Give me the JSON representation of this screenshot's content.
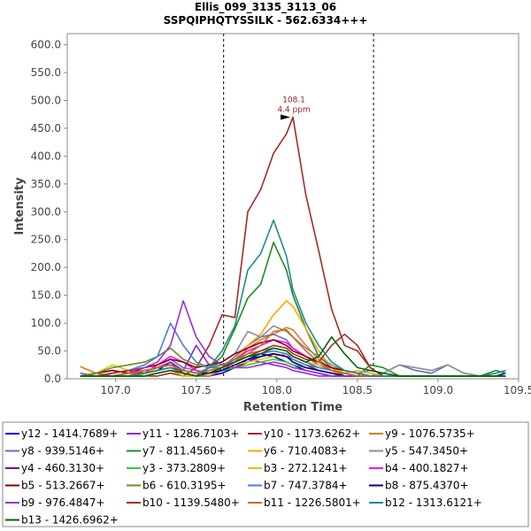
{
  "chart_data": {
    "type": "line",
    "title": "Ellis_099_3135_3113_06",
    "subtitle": "SSPQIPHQTYSSILK - 562.6334+++",
    "xlabel": "Retention Time",
    "ylabel": "Intensity",
    "xlim": [
      106.7,
      109.5
    ],
    "ylim": [
      0,
      620
    ],
    "x_ticks": [
      "107.0",
      "107.5",
      "108.0",
      "108.5",
      "109.0",
      "109.5"
    ],
    "y_ticks": [
      "0.0",
      "50.0",
      "100.0",
      "150.0",
      "200.0",
      "250.0",
      "300.0",
      "350.0",
      "400.0",
      "450.0",
      "500.0",
      "550.0",
      "600.0"
    ],
    "vlines": [
      107.67,
      108.6
    ],
    "annotation": {
      "x": 108.1,
      "y": 470,
      "line1": "108.1",
      "line2": "4.4 ppm"
    },
    "x": [
      106.78,
      106.88,
      106.98,
      107.08,
      107.18,
      107.26,
      107.34,
      107.42,
      107.5,
      107.58,
      107.66,
      107.74,
      107.82,
      107.9,
      107.98,
      108.06,
      108.1,
      108.18,
      108.26,
      108.34,
      108.42,
      108.5,
      108.58,
      108.66,
      108.76,
      108.86,
      108.96,
      109.06,
      109.16,
      109.26,
      109.36,
      109.42
    ],
    "series": [
      {
        "name": "y12 - 1414.7689+",
        "color": "#0000cc",
        "values": [
          5,
          5,
          5,
          5,
          10,
          15,
          30,
          10,
          5,
          5,
          10,
          20,
          35,
          45,
          40,
          30,
          25,
          15,
          10,
          5,
          5,
          5,
          5,
          5,
          5,
          5,
          5,
          5,
          5,
          5,
          5,
          10
        ]
      },
      {
        "name": "y11 - 1286.7103+",
        "color": "#8a2be2",
        "values": [
          5,
          5,
          5,
          5,
          10,
          20,
          30,
          15,
          60,
          25,
          15,
          20,
          35,
          30,
          25,
          20,
          15,
          10,
          5,
          5,
          5,
          5,
          5,
          5,
          5,
          5,
          5,
          5,
          5,
          5,
          5,
          5
        ]
      },
      {
        "name": "y10 - 1173.6262+",
        "color": "#a52a2a",
        "values": [
          5,
          5,
          5,
          5,
          5,
          5,
          10,
          5,
          20,
          60,
          115,
          110,
          300,
          340,
          405,
          440,
          470,
          330,
          230,
          125,
          60,
          50,
          20,
          5,
          5,
          5,
          5,
          5,
          5,
          5,
          5,
          5
        ]
      },
      {
        "name": "y9 - 1076.5735+",
        "color": "#e07b1a",
        "values": [
          22,
          10,
          5,
          5,
          10,
          15,
          20,
          10,
          5,
          5,
          15,
          30,
          55,
          70,
          80,
          92,
          88,
          60,
          35,
          15,
          5,
          5,
          5,
          5,
          5,
          5,
          5,
          5,
          5,
          5,
          5,
          5
        ]
      },
      {
        "name": "y8 - 939.5146+",
        "color": "#6b6bb5",
        "values": [
          10,
          5,
          10,
          15,
          10,
          25,
          35,
          20,
          15,
          10,
          20,
          40,
          60,
          75,
          80,
          70,
          55,
          40,
          25,
          15,
          10,
          5,
          5,
          10,
          25,
          15,
          10,
          25,
          10,
          5,
          5,
          5
        ]
      },
      {
        "name": "y7 - 811.4560+",
        "color": "#228b22",
        "values": [
          5,
          5,
          5,
          5,
          5,
          10,
          15,
          10,
          5,
          20,
          40,
          90,
          145,
          170,
          245,
          195,
          150,
          90,
          40,
          20,
          5,
          5,
          25,
          20,
          5,
          5,
          5,
          5,
          5,
          5,
          15,
          10
        ]
      },
      {
        "name": "y6 - 710.4083+",
        "color": "#ffa500",
        "values": [
          5,
          5,
          5,
          10,
          5,
          10,
          15,
          5,
          5,
          10,
          20,
          35,
          60,
          80,
          115,
          140,
          130,
          90,
          50,
          20,
          10,
          15,
          10,
          5,
          5,
          5,
          5,
          5,
          5,
          5,
          5,
          5
        ]
      },
      {
        "name": "y5 - 547.3450+",
        "color": "#8b8b9b",
        "values": [
          5,
          5,
          5,
          10,
          15,
          20,
          25,
          15,
          10,
          20,
          30,
          45,
          85,
          75,
          95,
          85,
          75,
          55,
          40,
          25,
          15,
          10,
          15,
          10,
          25,
          20,
          15,
          25,
          10,
          5,
          5,
          5
        ]
      },
      {
        "name": "y4 - 460.3130+",
        "color": "#800080",
        "values": [
          5,
          5,
          5,
          5,
          10,
          15,
          20,
          10,
          5,
          10,
          15,
          20,
          30,
          40,
          45,
          40,
          35,
          25,
          15,
          10,
          5,
          5,
          5,
          5,
          5,
          5,
          5,
          5,
          5,
          5,
          5,
          5
        ]
      },
      {
        "name": "y3 - 373.2809+",
        "color": "#32cd32",
        "values": [
          5,
          5,
          5,
          5,
          10,
          15,
          20,
          10,
          5,
          10,
          15,
          20,
          25,
          30,
          35,
          30,
          25,
          20,
          15,
          10,
          5,
          5,
          5,
          5,
          5,
          5,
          5,
          5,
          5,
          5,
          5,
          5
        ]
      },
      {
        "name": "b3 - 272.1241+",
        "color": "#e6c200",
        "values": [
          5,
          10,
          25,
          15,
          10,
          20,
          25,
          15,
          10,
          15,
          20,
          25,
          30,
          35,
          40,
          45,
          40,
          30,
          25,
          20,
          15,
          10,
          5,
          5,
          5,
          5,
          5,
          5,
          5,
          5,
          5,
          5
        ]
      },
      {
        "name": "b4 - 400.1827+",
        "color": "#ff00ff",
        "values": [
          5,
          10,
          15,
          10,
          10,
          25,
          40,
          30,
          15,
          10,
          20,
          35,
          50,
          60,
          70,
          65,
          55,
          40,
          30,
          20,
          15,
          10,
          5,
          5,
          5,
          5,
          5,
          5,
          5,
          5,
          5,
          5
        ]
      },
      {
        "name": "b5 - 513.2667+",
        "color": "#8b0000",
        "values": [
          5,
          10,
          15,
          10,
          20,
          25,
          35,
          30,
          20,
          25,
          30,
          45,
          55,
          65,
          70,
          60,
          50,
          40,
          30,
          20,
          15,
          10,
          5,
          5,
          5,
          5,
          5,
          5,
          5,
          5,
          5,
          5
        ]
      },
      {
        "name": "b6 - 610.3195+",
        "color": "#6b8e23",
        "values": [
          5,
          10,
          20,
          25,
          30,
          40,
          55,
          35,
          25,
          20,
          25,
          35,
          45,
          50,
          55,
          50,
          40,
          30,
          20,
          15,
          10,
          5,
          5,
          5,
          5,
          5,
          5,
          5,
          5,
          5,
          5,
          5
        ]
      },
      {
        "name": "b7 - 747.3784+",
        "color": "#4a7bdc",
        "values": [
          5,
          5,
          10,
          15,
          25,
          40,
          100,
          60,
          30,
          20,
          20,
          30,
          40,
          45,
          50,
          45,
          35,
          25,
          20,
          15,
          10,
          5,
          5,
          5,
          5,
          5,
          5,
          5,
          5,
          5,
          5,
          5
        ]
      },
      {
        "name": "b8 - 875.4370+",
        "color": "#00008b",
        "values": [
          5,
          5,
          5,
          10,
          15,
          20,
          25,
          15,
          10,
          10,
          15,
          25,
          35,
          40,
          45,
          40,
          30,
          20,
          15,
          10,
          5,
          5,
          5,
          5,
          5,
          5,
          5,
          5,
          5,
          5,
          5,
          5
        ]
      },
      {
        "name": "b9 - 976.4847+",
        "color": "#9932cc",
        "values": [
          5,
          5,
          10,
          15,
          20,
          30,
          60,
          140,
          75,
          40,
          25,
          20,
          20,
          25,
          30,
          25,
          20,
          15,
          10,
          5,
          5,
          5,
          5,
          5,
          5,
          5,
          5,
          5,
          5,
          5,
          5,
          5
        ]
      },
      {
        "name": "b10 - 1139.5480+",
        "color": "#a0302a",
        "values": [
          5,
          5,
          10,
          15,
          10,
          15,
          20,
          15,
          10,
          15,
          20,
          30,
          40,
          50,
          60,
          55,
          45,
          35,
          30,
          60,
          80,
          60,
          20,
          5,
          5,
          5,
          5,
          5,
          5,
          5,
          5,
          5
        ]
      },
      {
        "name": "b11 - 1226.5801+",
        "color": "#d2691e",
        "values": [
          5,
          5,
          5,
          10,
          15,
          20,
          25,
          15,
          10,
          15,
          20,
          30,
          45,
          60,
          85,
          88,
          75,
          50,
          30,
          15,
          10,
          5,
          5,
          5,
          5,
          5,
          5,
          5,
          5,
          5,
          5,
          5
        ]
      },
      {
        "name": "b12 - 1313.6121+",
        "color": "#1e8b8b",
        "values": [
          5,
          5,
          5,
          5,
          10,
          15,
          20,
          10,
          5,
          20,
          50,
          95,
          195,
          225,
          285,
          220,
          160,
          100,
          60,
          30,
          15,
          10,
          5,
          5,
          5,
          5,
          5,
          5,
          5,
          5,
          10,
          15
        ]
      },
      {
        "name": "b13 - 1426.6962+",
        "color": "#006400",
        "values": [
          5,
          5,
          5,
          5,
          5,
          10,
          15,
          10,
          5,
          10,
          20,
          30,
          40,
          45,
          55,
          50,
          40,
          30,
          40,
          75,
          45,
          20,
          15,
          10,
          5,
          5,
          5,
          5,
          5,
          5,
          5,
          5
        ]
      }
    ]
  }
}
